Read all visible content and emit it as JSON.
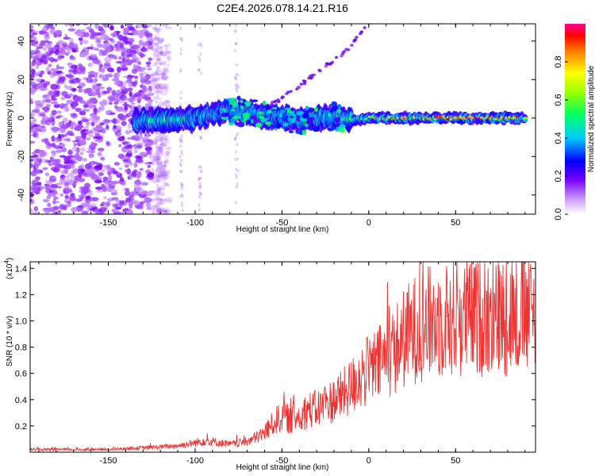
{
  "chart_data": [
    {
      "type": "heatmap",
      "title": "C2E4.2026.078.14.21.R16",
      "xlabel": "Height of straight line (km)",
      "ylabel": "Frequency (Hz)",
      "xlim": [
        -195,
        96
      ],
      "ylim": [
        -50,
        49
      ],
      "xticks": [
        -150,
        -100,
        -50,
        0,
        50
      ],
      "yticks": [
        -40,
        -20,
        0,
        20,
        40
      ],
      "colorbar": {
        "label": "Normalized spectral amplitude",
        "range": [
          0.0,
          1.0
        ],
        "ticks": [
          "0.0",
          "0.2",
          "0.4",
          "0.6",
          "0.8"
        ]
      },
      "features": {
        "noise_region_x": [
          -195,
          -125
        ],
        "main_band": [
          [
            -135,
            -2,
            0.3
          ],
          [
            -125,
            -1,
            0.55
          ],
          [
            -110,
            -1,
            0.6
          ],
          [
            -100,
            0,
            0.4
          ],
          [
            -90,
            2,
            0.4
          ],
          [
            -80,
            4,
            0.45
          ],
          [
            -70,
            3,
            0.35
          ],
          [
            -60,
            1,
            0.35
          ],
          [
            -50,
            0,
            0.35
          ],
          [
            -40,
            -1,
            0.4
          ],
          [
            -30,
            0,
            0.45
          ],
          [
            -20,
            1,
            0.45
          ],
          [
            -10,
            -1,
            0.6
          ],
          [
            0,
            0,
            0.75
          ],
          [
            10,
            0,
            0.8
          ],
          [
            20,
            0,
            0.85
          ],
          [
            30,
            0,
            0.85
          ],
          [
            40,
            0,
            0.9
          ],
          [
            50,
            0,
            0.95
          ],
          [
            60,
            0,
            0.95
          ],
          [
            70,
            0,
            0.95
          ],
          [
            80,
            0,
            0.9
          ],
          [
            90,
            0,
            0.85
          ]
        ],
        "rising_branch": [
          [
            -60,
            5
          ],
          [
            -50,
            10
          ],
          [
            -40,
            17
          ],
          [
            -32,
            22
          ],
          [
            -25,
            27
          ],
          [
            -20,
            30
          ],
          [
            -15,
            33
          ],
          [
            -12,
            36
          ],
          [
            -8,
            40
          ],
          [
            -5,
            44
          ],
          [
            -2,
            47
          ]
        ]
      }
    },
    {
      "type": "line",
      "title": "",
      "xlabel": "Height of straight line (km)",
      "ylabel": "SNR (10 * v/v)",
      "y_multiplier": "(x10",
      "y_multiplier_exp": "4",
      "y_multiplier_close": ")",
      "xlim": [
        -195,
        96
      ],
      "ylim": [
        0,
        1.45
      ],
      "xticks": [
        -150,
        -100,
        -50,
        0,
        50
      ],
      "yticks": [
        0.2,
        0.4,
        0.6,
        0.8,
        1.0,
        1.2,
        1.4
      ],
      "color": "#ee3333",
      "series": [
        {
          "name": "SNR",
          "x": [
            -195,
            -180,
            -165,
            -150,
            -135,
            -120,
            -110,
            -100,
            -95,
            -90,
            -85,
            -80,
            -75,
            -70,
            -65,
            -60,
            -55,
            -50,
            -45,
            -40,
            -35,
            -30,
            -25,
            -20,
            -15,
            -10,
            -5,
            0,
            5,
            10,
            15,
            20,
            25,
            30,
            40,
            50,
            60,
            70,
            80,
            90,
            96
          ],
          "values": [
            0.02,
            0.02,
            0.02,
            0.02,
            0.03,
            0.04,
            0.05,
            0.07,
            0.09,
            0.08,
            0.07,
            0.06,
            0.07,
            0.08,
            0.11,
            0.15,
            0.22,
            0.28,
            0.24,
            0.28,
            0.32,
            0.33,
            0.36,
            0.4,
            0.44,
            0.5,
            0.58,
            0.62,
            0.66,
            0.72,
            0.78,
            0.86,
            0.92,
            0.97,
            1.0,
            1.02,
            1.03,
            1.04,
            1.03,
            1.05,
            1.04
          ]
        }
      ]
    }
  ]
}
